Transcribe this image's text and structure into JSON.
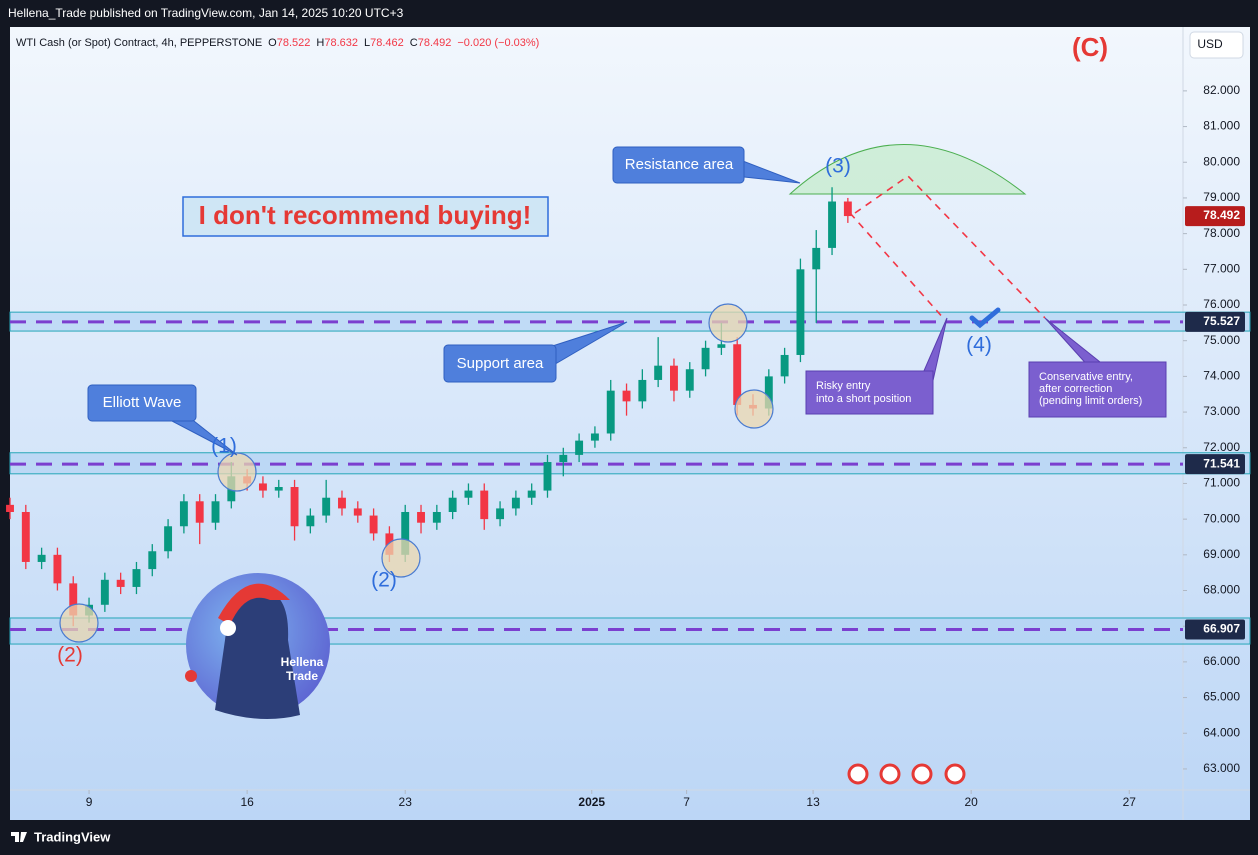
{
  "header": "Hellena_Trade published on TradingView.com, Jan 14, 2025 10:20 UTC+3",
  "footer": "TradingView",
  "chart_data": {
    "type": "candlestick",
    "symbol": "WTI Cash (or Spot) Contract, 4h, PEPPERSTONE",
    "ohlc": [
      {
        "label": "O",
        "value": 78.522
      },
      {
        "label": "H",
        "value": 78.632
      },
      {
        "label": "L",
        "value": 78.462
      },
      {
        "label": "C",
        "value": 78.492
      }
    ],
    "change": "−0.020 (−0.03%)",
    "currency": "USD",
    "up_color": "#089981",
    "down_color": "#f23645",
    "x": [
      -2.5,
      -2,
      -1.5,
      -1,
      -0.5,
      0,
      0.5,
      1,
      1.5,
      2,
      2.5,
      3,
      3.5,
      4,
      4.5,
      5,
      5.5,
      6,
      6.5,
      7,
      7.5,
      8,
      8.5,
      9,
      9.5,
      10,
      10.5,
      11,
      11.5,
      12,
      12.5,
      13,
      13.5,
      14,
      14.5,
      15,
      15.5,
      16,
      16.5,
      17,
      17.5,
      18,
      18.5,
      19,
      19.5,
      20,
      20.5,
      21,
      21.5,
      22,
      22.5,
      23,
      23.5,
      24
    ],
    "open": [
      70.4,
      70.2,
      68.8,
      69.0,
      68.2,
      67.3,
      67.6,
      68.3,
      68.1,
      68.6,
      69.1,
      69.8,
      70.5,
      69.9,
      70.5,
      71.2,
      71.0,
      70.8,
      70.9,
      69.8,
      70.1,
      70.6,
      70.3,
      70.1,
      69.6,
      69.0,
      70.2,
      69.9,
      70.2,
      70.6,
      70.8,
      70.0,
      70.3,
      70.6,
      70.8,
      71.6,
      71.8,
      72.2,
      72.4,
      73.6,
      73.3,
      73.9,
      74.3,
      73.6,
      74.2,
      74.8,
      74.9,
      73.2,
      73.1,
      74.0,
      74.6,
      77.0,
      77.6,
      78.9
    ],
    "high": [
      70.6,
      70.4,
      69.2,
      69.2,
      68.4,
      67.8,
      68.5,
      68.5,
      68.8,
      69.3,
      70.0,
      70.7,
      70.7,
      70.7,
      71.6,
      71.4,
      71.2,
      71.1,
      71.1,
      70.3,
      71.1,
      70.8,
      70.5,
      70.3,
      69.8,
      70.4,
      70.4,
      70.4,
      70.8,
      71.0,
      71.0,
      70.5,
      70.8,
      71.0,
      71.8,
      72.0,
      72.4,
      72.6,
      73.9,
      73.8,
      74.2,
      75.1,
      74.5,
      74.4,
      75.0,
      75.5,
      75.1,
      73.5,
      74.2,
      74.8,
      77.3,
      78.1,
      79.3,
      79.0
    ],
    "low": [
      70.0,
      68.6,
      68.6,
      68.0,
      67.0,
      67.1,
      67.4,
      67.9,
      67.9,
      68.4,
      68.9,
      69.6,
      69.3,
      69.7,
      70.3,
      70.8,
      70.6,
      70.6,
      69.4,
      69.6,
      69.9,
      70.1,
      69.9,
      69.4,
      68.8,
      68.8,
      69.6,
      69.7,
      70.0,
      70.4,
      69.7,
      69.8,
      70.1,
      70.4,
      70.6,
      71.2,
      71.6,
      72.0,
      72.2,
      72.9,
      73.1,
      73.7,
      73.3,
      73.4,
      74.0,
      74.6,
      72.9,
      72.9,
      72.9,
      73.8,
      74.4,
      75.5,
      77.4,
      78.3
    ],
    "close": [
      70.2,
      68.8,
      69.0,
      68.2,
      67.3,
      67.6,
      68.3,
      68.1,
      68.6,
      69.1,
      69.8,
      70.5,
      69.9,
      70.5,
      71.2,
      71.0,
      70.8,
      70.9,
      69.8,
      70.1,
      70.6,
      70.3,
      70.1,
      69.6,
      69.0,
      70.2,
      69.9,
      70.2,
      70.6,
      70.8,
      70.0,
      70.3,
      70.6,
      70.8,
      71.6,
      71.8,
      72.2,
      72.4,
      73.6,
      73.3,
      73.9,
      74.3,
      73.6,
      74.2,
      74.8,
      74.9,
      73.2,
      73.1,
      74.0,
      74.6,
      77.0,
      77.6,
      78.9,
      78.492
    ],
    "xlim": [
      -2.5,
      34.6
    ],
    "xticks": [
      {
        "value": 0,
        "label": "9"
      },
      {
        "value": 5,
        "label": "16"
      },
      {
        "value": 10,
        "label": "23"
      },
      {
        "value": 15.9,
        "label": "2025"
      },
      {
        "value": 18.9,
        "label": "7"
      },
      {
        "value": 22.9,
        "label": "13"
      },
      {
        "value": 27.9,
        "label": "20"
      },
      {
        "value": 32.9,
        "label": "27"
      }
    ],
    "ylim": [
      62.41,
      83.79
    ],
    "yticks": [
      {
        "value": 63,
        "label": "63.000"
      },
      {
        "value": 64,
        "label": "64.000"
      },
      {
        "value": 65,
        "label": "65.000"
      },
      {
        "value": 66,
        "label": "66.000"
      },
      {
        "value": 67,
        "label": "67.000"
      },
      {
        "value": 68,
        "label": "68.000"
      },
      {
        "value": 69,
        "label": "69.000"
      },
      {
        "value": 70,
        "label": "70.000"
      },
      {
        "value": 71,
        "label": "71.000"
      },
      {
        "value": 72,
        "label": "72.000"
      },
      {
        "value": 73,
        "label": "73.000"
      },
      {
        "value": 74,
        "label": "74.000"
      },
      {
        "value": 75,
        "label": "75.000"
      },
      {
        "value": 76,
        "label": "76.000"
      },
      {
        "value": 77,
        "label": "77.000"
      },
      {
        "value": 78,
        "label": "78.000"
      },
      {
        "value": 79,
        "label": "79.000"
      },
      {
        "value": 80,
        "label": "80.000"
      },
      {
        "value": 81,
        "label": "81.000"
      },
      {
        "value": 82,
        "label": "82.000"
      }
    ],
    "grid": false,
    "levels": [
      75.527,
      71.541,
      66.907
    ],
    "level_color": "#7b3fcf",
    "zones": [
      [
        75.27,
        75.8
      ],
      [
        71.27,
        71.86
      ],
      [
        66.5,
        67.23
      ]
    ],
    "annotations": {
      "wave_c": "(C)",
      "warning": "I don't recommend buying!",
      "resistance": "Resistance area",
      "support": "Support area",
      "elliott": "Elliott Wave",
      "wave_1": "(1)",
      "wave_2_blue": "(2)",
      "wave_2_red": "(2)",
      "wave_3": "(3)",
      "wave_4": "(4)",
      "risky": [
        "Risky entry",
        "into a short position"
      ],
      "conservative": [
        "Conservative entry,",
        "after correction",
        "(pending limit orders)"
      ],
      "logo": [
        "Hellena",
        "Trade"
      ]
    }
  }
}
